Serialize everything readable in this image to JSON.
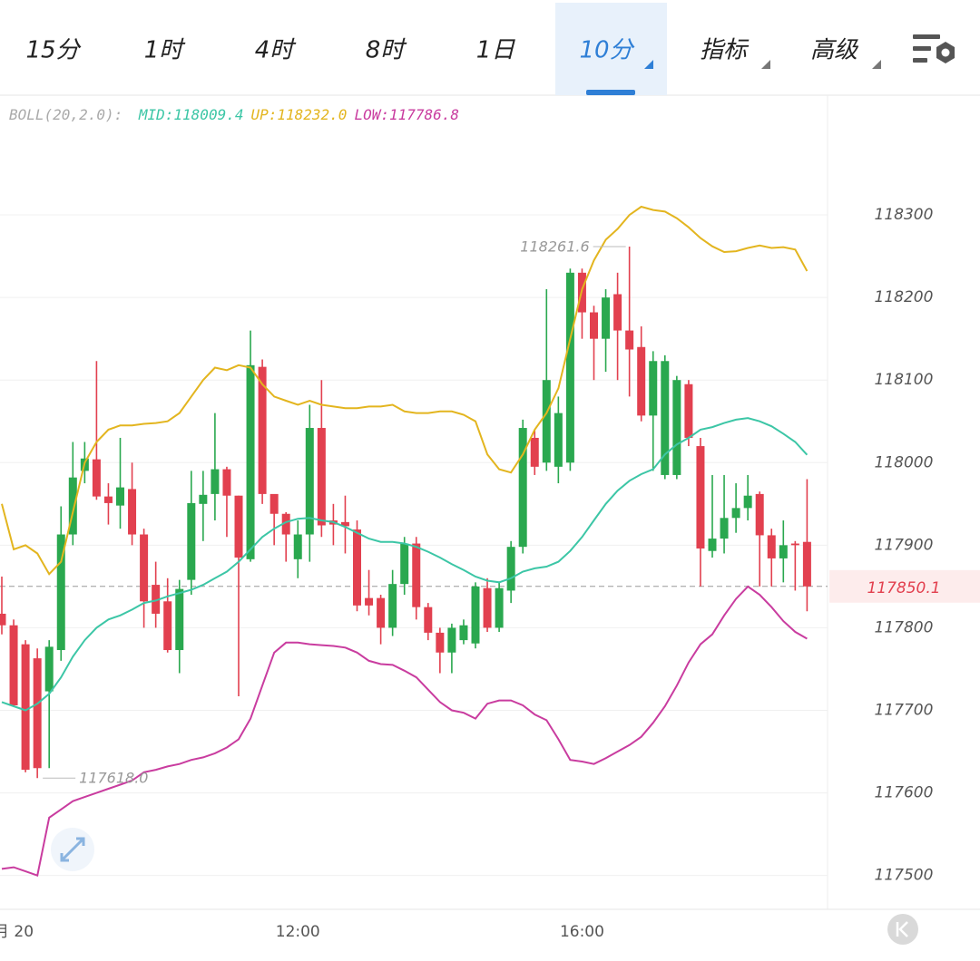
{
  "toolbar": {
    "tabs": [
      {
        "label": "15分"
      },
      {
        "label": "1时"
      },
      {
        "label": "4时"
      },
      {
        "label": "8时"
      },
      {
        "label": "1日"
      },
      {
        "label": "10分",
        "active": true,
        "dropdown": true
      },
      {
        "label": "指标",
        "dropdown": true
      },
      {
        "label": "高级",
        "dropdown": true
      }
    ]
  },
  "chart_data": {
    "type": "candlestick",
    "indicator_title": "BOLL(20,2.0):",
    "categories": [
      null,
      "月 20",
      null,
      null,
      null,
      null,
      null,
      null,
      null,
      null,
      null,
      null,
      null,
      null,
      null,
      null,
      null,
      null,
      null,
      null,
      null,
      null,
      null,
      null,
      null,
      "12:00",
      null,
      null,
      null,
      null,
      null,
      null,
      null,
      null,
      null,
      null,
      null,
      null,
      null,
      null,
      null,
      null,
      null,
      null,
      null,
      null,
      null,
      null,
      null,
      "16:00",
      null,
      null,
      null,
      null,
      null,
      null,
      null,
      null,
      null,
      null,
      null,
      null,
      null,
      null,
      null,
      null,
      null,
      null,
      null
    ],
    "open": [
      117817,
      117803,
      117780,
      117763,
      117723,
      117773,
      117913,
      117990,
      118004,
      117959,
      117948,
      117968,
      117913,
      117852,
      117832,
      117773,
      117858,
      117950,
      117962,
      117992,
      117960,
      117883,
      118116,
      117962,
      117938,
      117883,
      117913,
      118042,
      117930,
      117928,
      117919,
      117836,
      117836,
      117800,
      117853,
      117902,
      117825,
      117794,
      117770,
      117785,
      117781,
      117848,
      117800,
      117845,
      117898,
      118030,
      118000,
      117995,
      118000,
      118230,
      118182,
      118150,
      118204,
      118160,
      118140,
      118057,
      117985,
      117985,
      118095,
      118020,
      117893,
      117908,
      117933,
      117945,
      117962,
      117912,
      117884,
      117902,
      117904
    ],
    "high": [
      117862,
      117810,
      117785,
      117775,
      117785,
      117947,
      118025,
      118025,
      118123,
      117975,
      118030,
      118000,
      117920,
      117880,
      117860,
      117858,
      117990,
      117990,
      118060,
      117995,
      117960,
      118160,
      118125,
      117955,
      117940,
      117930,
      118070,
      118100,
      117950,
      117960,
      117930,
      117870,
      117840,
      117870,
      117910,
      117910,
      117830,
      117800,
      117805,
      117810,
      117855,
      117860,
      117855,
      117905,
      118052,
      118040,
      118210,
      118080,
      118235,
      118235,
      118190,
      118210,
      118230,
      118261.6,
      118165,
      118135,
      118130,
      118105,
      118100,
      118030,
      117985,
      117985,
      117975,
      117985,
      117965,
      117920,
      117930,
      117905,
      117980
    ],
    "low": [
      117792,
      117705,
      117625,
      117618,
      117630,
      117760,
      117900,
      117975,
      117955,
      117925,
      117920,
      117900,
      117800,
      117800,
      117770,
      117745,
      117840,
      117905,
      117930,
      117910,
      117717,
      117880,
      117950,
      117900,
      117880,
      117860,
      117880,
      117910,
      117900,
      117890,
      117820,
      117815,
      117780,
      117790,
      117840,
      117810,
      117785,
      117745,
      117745,
      117780,
      117775,
      117795,
      117795,
      117830,
      117890,
      117985,
      117990,
      117975,
      117990,
      118150,
      118100,
      118110,
      118100,
      118080,
      118050,
      117990,
      117980,
      117980,
      118020,
      117850,
      117885,
      117890,
      117915,
      117930,
      117850,
      117850,
      117855,
      117845,
      117820
    ],
    "close": [
      117803,
      117706,
      117628,
      117630,
      117777,
      117913,
      117982,
      118005,
      117959,
      117951,
      117970,
      117913,
      117832,
      117817,
      117773,
      117847,
      117951,
      117961,
      117992,
      117960,
      117885,
      118118,
      117962,
      117938,
      117913,
      117913,
      118042,
      117924,
      117925,
      117923,
      117827,
      117827,
      117800,
      117853,
      117902,
      117825,
      117794,
      117770,
      117800,
      117803,
      117850,
      117800,
      117848,
      117898,
      118042,
      117995,
      118100,
      118060,
      118230,
      118182,
      118150,
      118200,
      118160,
      118137,
      118057,
      118123,
      118123,
      118100,
      118030,
      117896,
      117908,
      117933,
      117945,
      117960,
      117912,
      117884,
      117900,
      117900,
      117850.1
    ],
    "up_color": "#2aa84f",
    "down_color": "#e2404f",
    "overlays": [
      {
        "label": "MID:118009.4",
        "color": "#3cc6a6",
        "values": [
          117710,
          117705,
          117700,
          117708,
          117720,
          117740,
          117765,
          117785,
          117800,
          117810,
          117815,
          117822,
          117830,
          117833,
          117838,
          117842,
          117846,
          117852,
          117860,
          117868,
          117880,
          117895,
          117910,
          117920,
          117928,
          117932,
          117933,
          117930,
          117928,
          117922,
          117915,
          117908,
          117904,
          117904,
          117902,
          117898,
          117892,
          117885,
          117877,
          117870,
          117862,
          117857,
          117855,
          117860,
          117868,
          117872,
          117874,
          117880,
          117893,
          117910,
          117930,
          117950,
          117966,
          117978,
          117986,
          117992,
          118010,
          118022,
          118030,
          118040,
          118043,
          118048,
          118052,
          118054,
          118050,
          118044,
          118035,
          118025,
          118009.4
        ]
      },
      {
        "label": "UP:118232.0",
        "color": "#e3b51f",
        "values": [
          117950,
          117895,
          117900,
          117890,
          117865,
          117880,
          117940,
          118000,
          118025,
          118040,
          118045,
          118045,
          118047,
          118048,
          118050,
          118060,
          118080,
          118100,
          118115,
          118112,
          118118,
          118115,
          118095,
          118080,
          118075,
          118070,
          118075,
          118070,
          118068,
          118066,
          118066,
          118068,
          118068,
          118070,
          118062,
          118060,
          118060,
          118062,
          118062,
          118058,
          118050,
          118010,
          117992,
          117988,
          118010,
          118040,
          118060,
          118090,
          118150,
          118210,
          118245,
          118270,
          118283,
          118300,
          118310,
          118306,
          118304,
          118296,
          118285,
          118272,
          118262,
          118255,
          118256,
          118260,
          118263,
          118260,
          118261,
          118258,
          118232
        ]
      },
      {
        "label": "LOW:117786.8",
        "color": "#c93c9f",
        "values": [
          117508,
          117510,
          117505,
          117500,
          117570,
          117580,
          117590,
          117595,
          117600,
          117605,
          117610,
          117615,
          117625,
          117628,
          117632,
          117635,
          117640,
          117643,
          117648,
          117655,
          117665,
          117690,
          117730,
          117770,
          117782,
          117782,
          117780,
          117779,
          117778,
          117776,
          117770,
          117760,
          117756,
          117755,
          117748,
          117740,
          117725,
          117710,
          117700,
          117697,
          117690,
          117708,
          117712,
          117712,
          117706,
          117695,
          117688,
          117665,
          117640,
          117638,
          117635,
          117642,
          117650,
          117658,
          117668,
          117685,
          117705,
          117730,
          117758,
          117780,
          117792,
          117815,
          117835,
          117850,
          117840,
          117825,
          117808,
          117795,
          117786.8
        ]
      }
    ],
    "annotations": [
      {
        "label": "118261.6",
        "value": 118261.6
      },
      {
        "label": "117618.0",
        "value": 117618
      }
    ],
    "current_price": {
      "value": 117850.1,
      "label": "117850.1"
    },
    "ylim": [
      117459,
      118445
    ],
    "yticks": [
      117500,
      117600,
      117700,
      117800,
      117900,
      118000,
      118100,
      118200,
      118300
    ],
    "grid": true
  }
}
